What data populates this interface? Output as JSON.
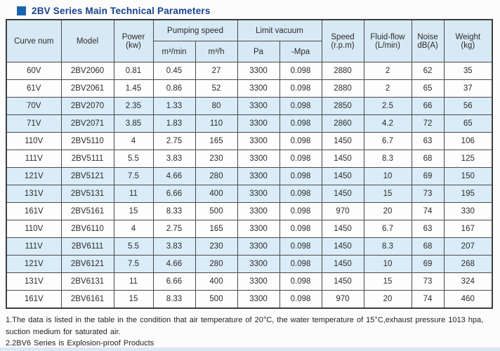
{
  "title": {
    "text": "2BV Series Main Technical Parameters"
  },
  "colors": {
    "title_text": "#17418e",
    "title_bullet": "#1a64ad",
    "header_bg": "#d7e9f5",
    "shaded_row_bg": "#d9ecf8",
    "border": "#4a4a4a"
  },
  "table": {
    "headers": {
      "curve_num": "Curve num",
      "model": "Model",
      "power": [
        "Power",
        "(kw)"
      ],
      "pumping_speed": "Pumping speed",
      "unit_m3min": "m³/min",
      "unit_m3h": "m³/h",
      "limit_vacuum": "Limit vacuum",
      "unit_pa": "Pa",
      "unit_mpa": "-Mpa",
      "speed": [
        "Speed",
        "(r.p.m)"
      ],
      "fluid_flow": [
        "Fluid-flow",
        "(L/min)"
      ],
      "noise": [
        "Noise",
        "dB(A)"
      ],
      "weight": [
        "Weight",
        "(kg)"
      ]
    },
    "rows": [
      {
        "shaded": false,
        "cells": [
          "60V",
          "2BV2060",
          "0.81",
          "0.45",
          "27",
          "3300",
          "0.098",
          "2880",
          "2",
          "62",
          "35"
        ]
      },
      {
        "shaded": false,
        "cells": [
          "61V",
          "2BV2061",
          "1.45",
          "0.86",
          "52",
          "3300",
          "0.098",
          "2880",
          "2",
          "65",
          "37"
        ]
      },
      {
        "shaded": true,
        "cells": [
          "70V",
          "2BV2070",
          "2.35",
          "1.33",
          "80",
          "3300",
          "0.098",
          "2850",
          "2.5",
          "66",
          "56"
        ]
      },
      {
        "shaded": true,
        "cells": [
          "71V",
          "2BV2071",
          "3.85",
          "1.83",
          "110",
          "3300",
          "0.098",
          "2860",
          "4.2",
          "72",
          "65"
        ]
      },
      {
        "shaded": false,
        "cells": [
          "110V",
          "2BV5110",
          "4",
          "2.75",
          "165",
          "3300",
          "0.098",
          "1450",
          "6.7",
          "63",
          "106"
        ]
      },
      {
        "shaded": false,
        "cells": [
          "111V",
          "2BV5111",
          "5.5",
          "3.83",
          "230",
          "3300",
          "0.098",
          "1450",
          "8.3",
          "68",
          "125"
        ]
      },
      {
        "shaded": true,
        "cells": [
          "121V",
          "2BV5121",
          "7.5",
          "4.66",
          "280",
          "3300",
          "0.098",
          "1450",
          "10",
          "69",
          "150"
        ]
      },
      {
        "shaded": true,
        "cells": [
          "131V",
          "2BV5131",
          "11",
          "6.66",
          "400",
          "3300",
          "0.098",
          "1450",
          "15",
          "73",
          "195"
        ]
      },
      {
        "shaded": false,
        "cells": [
          "161V",
          "2BV5161",
          "15",
          "8.33",
          "500",
          "3300",
          "0.098",
          "970",
          "20",
          "74",
          "330"
        ]
      },
      {
        "shaded": false,
        "cells": [
          "110V",
          "2BV6110",
          "4",
          "2.75",
          "165",
          "3300",
          "0.098",
          "1450",
          "6.7",
          "63",
          "167"
        ]
      },
      {
        "shaded": true,
        "cells": [
          "111V",
          "2BV6111",
          "5.5",
          "3.83",
          "230",
          "3300",
          "0.098",
          "1450",
          "8.3",
          "68",
          "207"
        ]
      },
      {
        "shaded": true,
        "cells": [
          "121V",
          "2BV6121",
          "7.5",
          "4.66",
          "280",
          "3300",
          "0.098",
          "1450",
          "10",
          "69",
          "268"
        ]
      },
      {
        "shaded": false,
        "cells": [
          "131V",
          "2BV6131",
          "11",
          "6.66",
          "400",
          "3300",
          "0.098",
          "1450",
          "15",
          "73",
          "324"
        ]
      },
      {
        "shaded": false,
        "cells": [
          "161V",
          "2BV6161",
          "15",
          "8.33",
          "500",
          "3300",
          "0.098",
          "970",
          "20",
          "74",
          "460"
        ]
      }
    ]
  },
  "notes": [
    "1.The data is listed in the table in the condition that air temperature of 20°C, the water temperature of 15°C,exhaust pressure 1013 hpa, suction medium for saturated air.",
    "2.2BV6 Series is Explosion-proof Products"
  ]
}
